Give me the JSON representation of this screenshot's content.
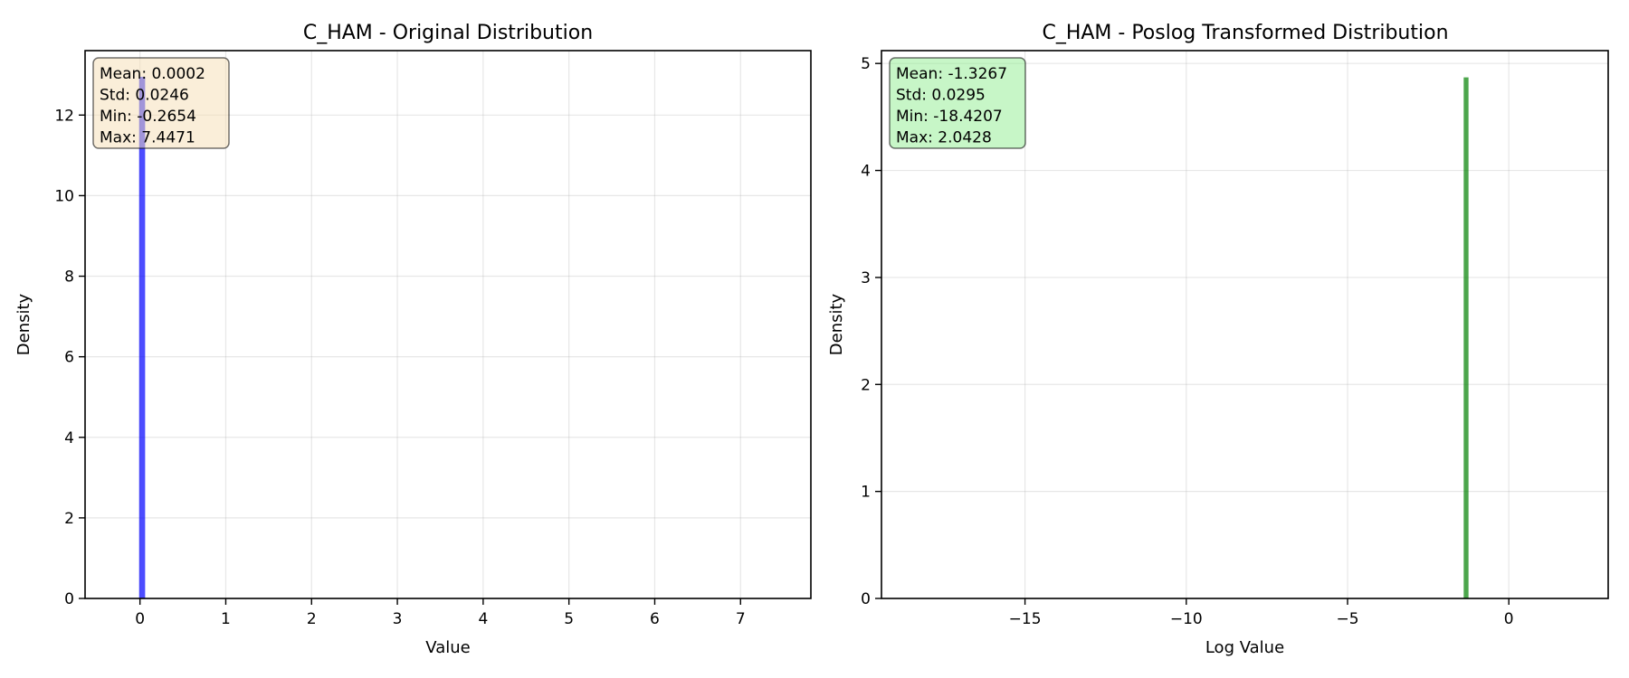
{
  "chart_data": [
    {
      "type": "bar",
      "title": "C_HAM - Original Distribution",
      "xlabel": "Value",
      "ylabel": "Density",
      "xlim": [
        -0.64,
        7.82
      ],
      "ylim": [
        0,
        13.6
      ],
      "grid": true,
      "bar_color": "#0000ff",
      "bar_opacity": 0.7,
      "stats_box_color": "#f5deb3",
      "x_ticks": [
        0,
        1,
        2,
        3,
        4,
        5,
        6,
        7
      ],
      "x_tick_labels": [
        "0",
        "1",
        "2",
        "3",
        "4",
        "5",
        "6",
        "7"
      ],
      "y_ticks": [
        0,
        2,
        4,
        6,
        8,
        10,
        12
      ],
      "y_tick_labels": [
        "0",
        "2",
        "4",
        "6",
        "8",
        "10",
        "12"
      ],
      "bins": [
        {
          "x0": -0.01,
          "x1": 0.06,
          "density": 12.95
        }
      ],
      "stats_lines": [
        "Mean: 0.0002",
        "Std: 0.0246",
        "Min: -0.2654",
        "Max: 7.4471"
      ]
    },
    {
      "type": "bar",
      "title": "C_HAM - Poslog Transformed Distribution",
      "xlabel": "Log Value",
      "ylabel": "Density",
      "xlim": [
        -19.45,
        3.08
      ],
      "ylim": [
        0,
        5.12
      ],
      "grid": true,
      "bar_color": "#008000",
      "bar_opacity": 0.7,
      "stats_box_color": "#90ee90",
      "x_ticks": [
        -15,
        -10,
        -5,
        0
      ],
      "x_tick_labels": [
        "−15",
        "−10",
        "−5",
        "0"
      ],
      "y_ticks": [
        0,
        1,
        2,
        3,
        4,
        5
      ],
      "y_tick_labels": [
        "0",
        "1",
        "2",
        "3",
        "4",
        "5"
      ],
      "bins": [
        {
          "x0": -1.4,
          "x1": -1.25,
          "density": 4.87
        }
      ],
      "stats_lines": [
        "Mean: -1.3267",
        "Std: 0.0295",
        "Min: -18.4207",
        "Max: 2.0428"
      ]
    }
  ]
}
